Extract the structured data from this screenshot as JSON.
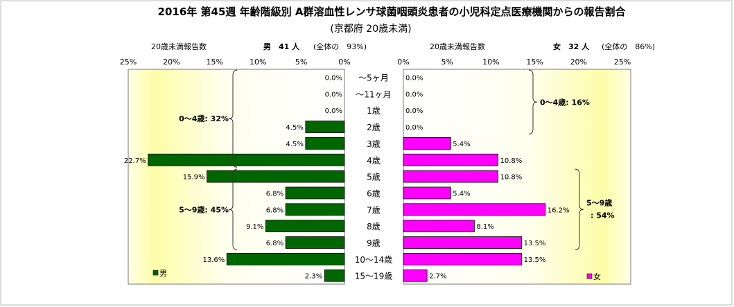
{
  "chart_data": {
    "type": "bar",
    "title": "2016年 第45週 年齢階級別 A群溶血性レンサ球菌咽頭炎患者の小児科定点医療機関からの報告割合",
    "subtitle": "(京都府 20歳未満)",
    "categories": [
      "～5ヶ月",
      "～11ヶ月",
      "1歳",
      "2歳",
      "3歳",
      "4歳",
      "5歳",
      "6歳",
      "7歳",
      "8歳",
      "9歳",
      "10～14歳",
      "15～19歳"
    ],
    "xlim": [
      0,
      25
    ],
    "ticks": [
      0,
      5,
      10,
      15,
      20,
      25
    ],
    "series": [
      {
        "name": "男",
        "color": "#006600",
        "side": "left",
        "header_label": "20歳未満報告数",
        "total_text": "男　41 人",
        "share_text": "(全体の　93%)",
        "values": [
          0.0,
          0.0,
          0.0,
          4.5,
          4.5,
          22.7,
          15.9,
          6.8,
          6.8,
          9.1,
          6.8,
          13.6,
          2.3
        ],
        "labels": [
          "0.0%",
          "0.0%",
          "0.0%",
          "4.5%",
          "4.5%",
          "22.7%",
          "15.9%",
          "6.8%",
          "6.8%",
          "9.1%",
          "6.8%",
          "13.6%",
          "2.3%"
        ],
        "groups": [
          {
            "text": "0～4歳: 32%",
            "from": 0,
            "to": 5
          },
          {
            "text": "5～9歳: 45%",
            "from": 6,
            "to": 10
          }
        ]
      },
      {
        "name": "女",
        "color": "#ff00ff",
        "side": "right",
        "header_label": "20歳未満報告数",
        "total_text": "女　32 人",
        "share_text": "(全体の　86%)",
        "values": [
          0.0,
          0.0,
          0.0,
          0.0,
          5.4,
          10.8,
          10.8,
          5.4,
          16.2,
          8.1,
          13.5,
          13.5,
          2.7
        ],
        "labels": [
          "0.0%",
          "0.0%",
          "0.0%",
          "0.0%",
          "5.4%",
          "10.8%",
          "10.8%",
          "5.4%",
          "16.2%",
          "8.1%",
          "13.5%",
          "13.5%",
          "2.7%"
        ],
        "groups": [
          {
            "text": "0～4歳: 16%",
            "from": 0,
            "to": 3
          },
          {
            "text": "5～9歳",
            "text2": ": 54%",
            "from": 6,
            "to": 10
          }
        ]
      }
    ],
    "tick_labels": [
      "0%",
      "5%",
      "10%",
      "15%",
      "20%",
      "25%"
    ]
  }
}
